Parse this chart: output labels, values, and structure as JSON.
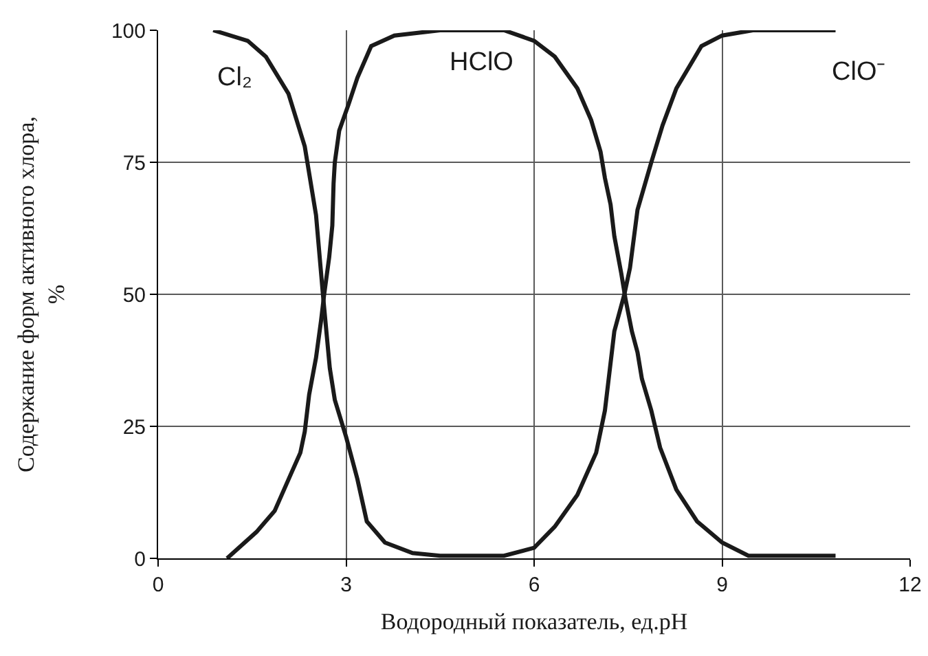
{
  "chart_data": {
    "type": "line",
    "xlabel": "Водородный показатель, ед.pH",
    "ylabel": "Содержание форм активного хлора,\n%",
    "xlim": [
      0,
      12
    ],
    "xticks": [
      0,
      3,
      6,
      9,
      12
    ],
    "ylim": [
      0,
      100
    ],
    "yticks": [
      0,
      25,
      50,
      75,
      100
    ],
    "grid": true,
    "marker": "none",
    "line_style": "solid",
    "series": [
      {
        "color": "#1a1a1a",
        "x": [
          0.88,
          1.43,
          1.72,
          2.08,
          2.34,
          2.52,
          2.63,
          2.74,
          2.82,
          3.0,
          3.18,
          3.33,
          3.62,
          4.06,
          4.5,
          5.52,
          6.0,
          6.33,
          6.69,
          6.99,
          7.13,
          7.21,
          7.28,
          7.44,
          7.53,
          7.65,
          7.87,
          8.05,
          8.27,
          8.67,
          9.0,
          9.49,
          9.93,
          10.81
        ],
        "values": [
          100,
          98,
          95,
          88,
          78,
          65,
          50,
          36,
          30,
          23,
          15,
          7,
          3,
          1,
          0.5,
          0.5,
          2,
          6,
          12,
          20,
          28,
          36,
          43,
          50,
          55,
          66,
          75,
          82,
          89,
          97,
          99,
          100,
          100,
          100
        ]
      },
      {
        "color": "#1a1a1a",
        "x": [
          1.1,
          1.57,
          1.86,
          2.12,
          2.27,
          2.34,
          2.41,
          2.52,
          2.6,
          2.65,
          2.73,
          2.78,
          2.8,
          2.82,
          2.89,
          3.04,
          3.18,
          3.4,
          3.77,
          4.5,
          5.09,
          5.52,
          6.0,
          6.33,
          6.69,
          6.91,
          7.06,
          7.13,
          7.22,
          7.28,
          7.39,
          7.46,
          7.56,
          7.65,
          7.72,
          7.87,
          8.01,
          8.27,
          8.6,
          9.0,
          9.42,
          10.81
        ],
        "values": [
          0,
          5,
          9,
          16,
          20,
          24,
          31,
          38,
          45,
          50,
          57,
          63,
          71,
          75,
          81,
          86,
          91,
          97,
          99,
          100,
          100,
          100,
          98,
          95,
          89,
          83,
          77,
          72,
          67,
          61,
          54,
          49,
          43,
          39,
          34,
          28,
          21,
          13,
          7,
          3,
          0.5,
          0.5
        ]
      }
    ],
    "annotations": [
      "Cl₂",
      "HClO",
      "ClO⁻"
    ]
  }
}
